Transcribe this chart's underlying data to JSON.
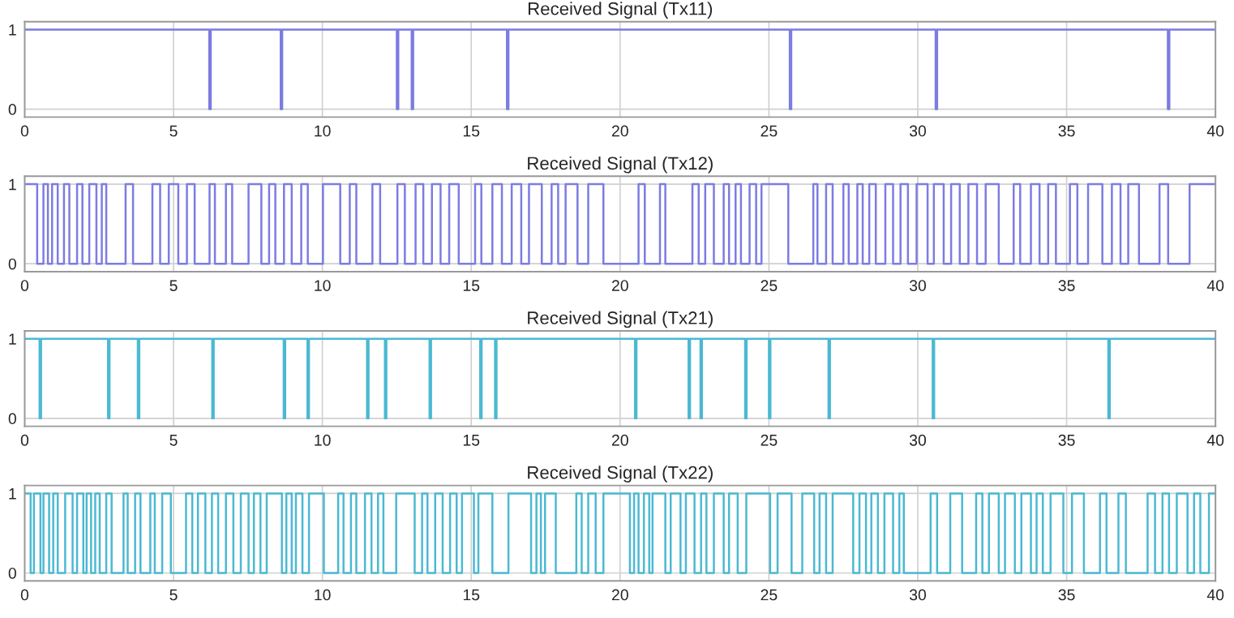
{
  "chart_data": [
    {
      "type": "step",
      "title": "Received Signal (Tx11)",
      "color": "#7c7ce2",
      "xlim": [
        0,
        40
      ],
      "ylim": [
        -0.1,
        1.1
      ],
      "xticks": [
        0,
        5,
        10,
        15,
        20,
        25,
        30,
        35,
        40
      ],
      "yticks": [
        0,
        1
      ],
      "grid": true,
      "x": [
        0,
        6.2,
        6.25,
        8.6,
        8.65,
        12.5,
        12.55,
        13,
        13.05,
        16.2,
        16.25,
        25.7,
        25.75,
        30.6,
        30.65,
        38.4,
        38.45,
        40
      ],
      "values": [
        1,
        0,
        1,
        0,
        1,
        0,
        1,
        0,
        1,
        0,
        1,
        0,
        1,
        0,
        1,
        0,
        1,
        1
      ]
    },
    {
      "type": "step",
      "title": "Received Signal (Tx12)",
      "color": "#7c7ce2",
      "xlim": [
        0,
        40
      ],
      "ylim": [
        -0.1,
        1.1
      ],
      "xticks": [
        0,
        5,
        10,
        15,
        20,
        25,
        30,
        35,
        40
      ],
      "yticks": [
        0,
        1
      ],
      "grid": true,
      "x": [
        0,
        0.42,
        0.63,
        0.78,
        0.92,
        1.11,
        1.32,
        1.5,
        1.76,
        1.94,
        2.17,
        2.41,
        2.59,
        2.74,
        3.39,
        3.64,
        4.29,
        4.55,
        4.84,
        5.16,
        5.45,
        5.71,
        6.21,
        6.39,
        6.76,
        6.97,
        7.52,
        7.95,
        8.21,
        8.42,
        8.71,
        8.97,
        9.29,
        9.51,
        10.02,
        10.6,
        10.92,
        11.14,
        11.68,
        11.94,
        12.52,
        12.77,
        13.13,
        13.39,
        13.68,
        13.97,
        14.26,
        14.58,
        15.13,
        15.34,
        15.71,
        16.03,
        16.36,
        16.68,
        16.94,
        17.37,
        17.7,
        17.92,
        18.17,
        18.57,
        18.93,
        19.44,
        20.62,
        20.83,
        21.34,
        21.52,
        22.43,
        22.64,
        22.86,
        23.15,
        23.48,
        23.66,
        23.88,
        24.06,
        24.35,
        24.57,
        24.75,
        25.65,
        26.49,
        26.63,
        26.92,
        27.14,
        27.5,
        27.68,
        27.97,
        28.15,
        28.37,
        28.59,
        28.91,
        29.17,
        29.42,
        29.67,
        29.96,
        30.33,
        30.54,
        30.87,
        31.12,
        31.41,
        31.7,
        31.99,
        32.28,
        32.72,
        33.22,
        33.44,
        33.8,
        34.09,
        34.38,
        34.64,
        35.11,
        35.36,
        35.72,
        36.2,
        36.52,
        36.81,
        37.07,
        37.43,
        38.12,
        38.41,
        39.13,
        40
      ],
      "values": [
        1,
        0,
        1,
        0,
        1,
        0,
        1,
        0,
        1,
        0,
        1,
        0,
        1,
        0,
        1,
        0,
        1,
        0,
        1,
        0,
        1,
        0,
        1,
        0,
        1,
        0,
        1,
        0,
        1,
        0,
        1,
        0,
        1,
        0,
        1,
        0,
        1,
        0,
        1,
        0,
        1,
        0,
        1,
        0,
        1,
        0,
        1,
        0,
        1,
        0,
        1,
        0,
        1,
        0,
        1,
        0,
        1,
        0,
        1,
        0,
        1,
        0,
        1,
        0,
        1,
        0,
        1,
        0,
        1,
        0,
        1,
        0,
        1,
        0,
        1,
        0,
        1,
        0,
        1,
        0,
        1,
        0,
        1,
        0,
        1,
        0,
        1,
        0,
        1,
        0,
        1,
        0,
        1,
        0,
        1,
        0,
        1,
        0,
        1,
        0,
        1,
        0,
        1,
        0,
        1,
        0,
        1,
        0,
        1,
        0,
        1,
        0,
        1,
        0,
        1,
        0,
        1,
        0,
        1,
        1
      ]
    },
    {
      "type": "step",
      "title": "Received Signal (Tx21)",
      "color": "#4bb9d2",
      "xlim": [
        0,
        40
      ],
      "ylim": [
        -0.1,
        1.1
      ],
      "xticks": [
        0,
        5,
        10,
        15,
        20,
        25,
        30,
        35,
        40
      ],
      "yticks": [
        0,
        1
      ],
      "grid": true,
      "x": [
        0,
        0.5,
        0.55,
        2.8,
        2.85,
        3.8,
        3.85,
        6.3,
        6.35,
        8.7,
        8.75,
        9.5,
        9.55,
        11.5,
        11.55,
        12.1,
        12.15,
        13.6,
        13.65,
        15.3,
        15.35,
        15.8,
        15.85,
        20.5,
        20.55,
        22.3,
        22.35,
        22.7,
        22.75,
        24.2,
        24.25,
        25,
        25.05,
        27,
        27.05,
        30.5,
        30.55,
        36.4,
        36.45,
        40
      ],
      "values": [
        1,
        0,
        1,
        0,
        1,
        0,
        1,
        0,
        1,
        0,
        1,
        0,
        1,
        0,
        1,
        0,
        1,
        0,
        1,
        0,
        1,
        0,
        1,
        0,
        1,
        0,
        1,
        0,
        1,
        0,
        1,
        0,
        1,
        0,
        1,
        0,
        1,
        0,
        1,
        1
      ]
    },
    {
      "type": "step",
      "title": "Received Signal (Tx22)",
      "color": "#4bb9d2",
      "xlim": [
        0,
        40
      ],
      "ylim": [
        -0.1,
        1.1
      ],
      "xticks": [
        0,
        5,
        10,
        15,
        20,
        25,
        30,
        35,
        40
      ],
      "yticks": [
        0,
        1
      ],
      "grid": true,
      "x": [
        0,
        0.2,
        0.31,
        0.53,
        0.63,
        0.82,
        0.96,
        1.11,
        1.36,
        1.61,
        1.76,
        1.97,
        2.08,
        2.23,
        2.37,
        2.52,
        2.74,
        2.92,
        3.32,
        3.46,
        3.71,
        3.89,
        4.22,
        4.37,
        4.62,
        4.91,
        5.42,
        5.63,
        5.82,
        6.07,
        6.29,
        6.5,
        6.76,
        7.01,
        7.26,
        7.52,
        7.7,
        7.92,
        8.13,
        8.64,
        8.79,
        8.97,
        9.11,
        9.33,
        9.55,
        10.05,
        10.53,
        10.71,
        10.96,
        11.14,
        11.43,
        11.65,
        11.87,
        12.05,
        12.48,
        13.1,
        13.35,
        13.53,
        13.79,
        14.04,
        14.29,
        14.51,
        14.69,
        15.09,
        15.24,
        15.71,
        16.25,
        17.01,
        17.19,
        17.34,
        17.48,
        17.84,
        18.53,
        18.71,
        18.93,
        19.18,
        19.44,
        20.33,
        20.47,
        20.62,
        20.8,
        20.98,
        21.09,
        21.52,
        21.7,
        22.03,
        22.21,
        22.5,
        22.72,
        22.9,
        23.15,
        23.48,
        23.66,
        23.95,
        24.24,
        25.04,
        25.29,
        25.76,
        26.12,
        26.52,
        26.7,
        26.92,
        27.14,
        27.83,
        28.04,
        28.26,
        28.44,
        28.66,
        28.88,
        29.17,
        29.38,
        29.53,
        30.43,
        30.65,
        31.09,
        31.49,
        31.96,
        32.17,
        32.39,
        32.72,
        32.93,
        33.26,
        33.48,
        33.8,
        33.99,
        34.2,
        34.46,
        34.89,
        35.18,
        35.58,
        36.12,
        36.34,
        36.74,
        36.99,
        37.72,
        37.97,
        38.22,
        38.44,
        38.7,
        39.06,
        39.28,
        39.49,
        39.78,
        40
      ],
      "values": [
        1,
        0,
        1,
        0,
        1,
        0,
        1,
        0,
        1,
        0,
        1,
        0,
        1,
        0,
        1,
        0,
        1,
        0,
        1,
        0,
        1,
        0,
        1,
        0,
        1,
        0,
        1,
        0,
        1,
        0,
        1,
        0,
        1,
        0,
        1,
        0,
        1,
        0,
        1,
        0,
        1,
        0,
        1,
        0,
        1,
        0,
        1,
        0,
        1,
        0,
        1,
        0,
        1,
        0,
        1,
        0,
        1,
        0,
        1,
        0,
        1,
        0,
        1,
        0,
        1,
        0,
        1,
        0,
        1,
        0,
        1,
        0,
        1,
        0,
        1,
        0,
        1,
        0,
        1,
        0,
        1,
        0,
        1,
        0,
        1,
        0,
        1,
        0,
        1,
        0,
        1,
        0,
        1,
        0,
        1,
        0,
        1,
        0,
        1,
        0,
        1,
        0,
        1,
        0,
        1,
        0,
        1,
        0,
        1,
        0,
        1,
        0,
        1,
        0,
        1,
        0,
        1,
        0,
        1,
        0,
        1,
        0,
        1,
        0,
        1,
        0,
        1,
        0,
        1,
        0,
        1,
        0,
        1,
        0,
        1,
        0,
        1,
        0,
        1,
        0,
        1,
        0,
        1,
        1
      ]
    }
  ]
}
